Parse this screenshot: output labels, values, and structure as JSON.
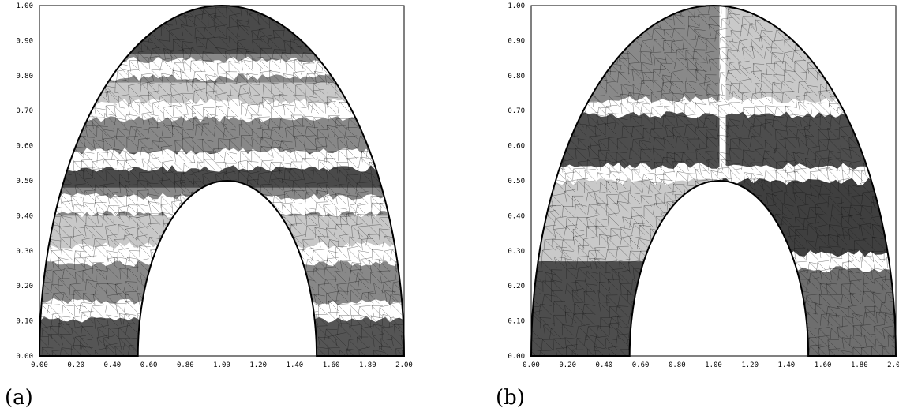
{
  "figure": {
    "panels": [
      {
        "caption": "(a)",
        "bands": [
          "#555555",
          "#888888",
          "#c8c8c8",
          "#888888",
          "#4a4a4a",
          "#888888",
          "#c8c8c8",
          "#888888",
          "#4a4a4a",
          "#555555"
        ],
        "band_edges": [
          0.0,
          0.11,
          0.27,
          0.4,
          0.48,
          0.58,
          0.7,
          0.78,
          0.86,
          1.0
        ],
        "split_x": null
      },
      {
        "caption": "(b)",
        "bands": [],
        "split_x": 1.05
      }
    ],
    "xticks": [
      "0.00",
      "0.20",
      "0.40",
      "0.60",
      "0.80",
      "1.00",
      "1.20",
      "1.40",
      "1.60",
      "1.80",
      "2.00"
    ],
    "yticks": [
      "0.00",
      "0.10",
      "0.20",
      "0.30",
      "0.40",
      "0.50",
      "0.60",
      "0.70",
      "0.80",
      "0.90",
      "1.00"
    ],
    "colors": {
      "dark": "#4d4d4d",
      "mid": "#898989",
      "light": "#c9c9c9",
      "interface": "#ffffff",
      "mesh": "#111111"
    }
  }
}
